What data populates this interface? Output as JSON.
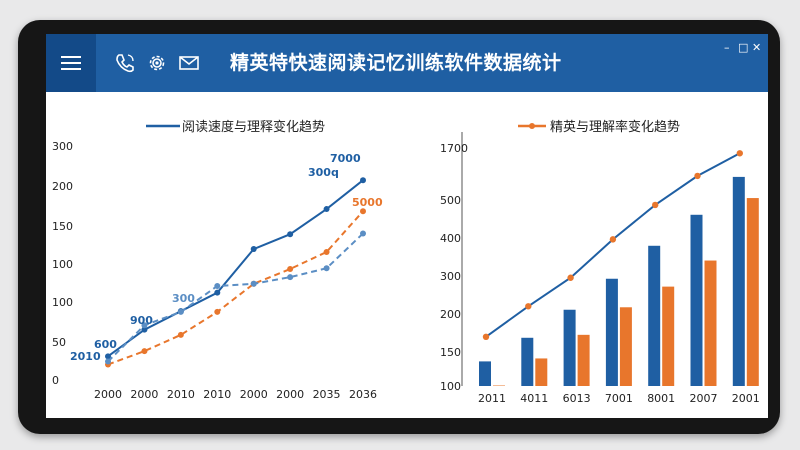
{
  "app": {
    "title": "精英特快速阅读记忆训练软件数据统计"
  },
  "icons": {
    "menu": "menu-icon",
    "phone": "phone-icon",
    "settings": "gear-icon",
    "mail": "mail-icon",
    "close": "close-icon",
    "maximize": "maximize-icon",
    "minimize": "minimize-icon"
  },
  "window_controls": {
    "close": "✕",
    "maximize": "□",
    "minimize": "–"
  },
  "colors": {
    "blue": "#1f5fa3",
    "orange": "#e8762c",
    "light_blue": "#5b8ec4"
  },
  "chart_data": [
    {
      "type": "line",
      "legend": "阅读速度与理释变化趋势",
      "categories": [
        "2000",
        "2000",
        "2010",
        "2010",
        "2000",
        "2000",
        "2035",
        "2036"
      ],
      "y_ticks": [
        "300",
        "200",
        "150",
        "100",
        "100",
        "50",
        "0"
      ],
      "series": [
        {
          "values": [
            32,
            68,
            93,
            118,
            177,
            197,
            231,
            270
          ],
          "color": "#1f5fa3",
          "style": "solid"
        },
        {
          "values": [
            21,
            39,
            61,
            92,
            130,
            150,
            173,
            228
          ],
          "color": "#e8762c",
          "style": "dashed"
        },
        {
          "values": [
            25,
            74,
            92,
            127,
            130,
            139,
            151,
            198
          ],
          "color": "#5b8ec4",
          "style": "dashed"
        }
      ],
      "annotations": [
        {
          "text": "7000",
          "color": "#1f5fa3"
        },
        {
          "text": "300q",
          "color": "#1f5fa3"
        },
        {
          "text": "5000",
          "color": "#e8762c"
        },
        {
          "text": "300",
          "color": "#5b8ec4"
        },
        {
          "text": "900",
          "color": "#1f5fa3"
        },
        {
          "text": "600",
          "color": "#1f5fa3"
        },
        {
          "text": "2010",
          "color": "#1f5fa3"
        }
      ]
    },
    {
      "type": "bar",
      "legend": "精英与理解率变化趋势",
      "categories": [
        "2011",
        "4011",
        "6013",
        "7001",
        "8001",
        "2007",
        "2001"
      ],
      "y_ticks": [
        "1700",
        "500",
        "400",
        "300",
        "200",
        "150",
        "100"
      ],
      "series": [
        {
          "values": [
            150,
            198,
            255,
            318,
            385,
            448,
            525
          ],
          "color": "#1f5fa3"
        },
        {
          "values": [
            101,
            156,
            204,
            260,
            302,
            355,
            482
          ],
          "color": "#e8762c"
        }
      ],
      "trend": {
        "values": [
          200,
          262,
          320,
          398,
          468,
          527,
          573
        ],
        "color": "#e8762c"
      }
    }
  ]
}
